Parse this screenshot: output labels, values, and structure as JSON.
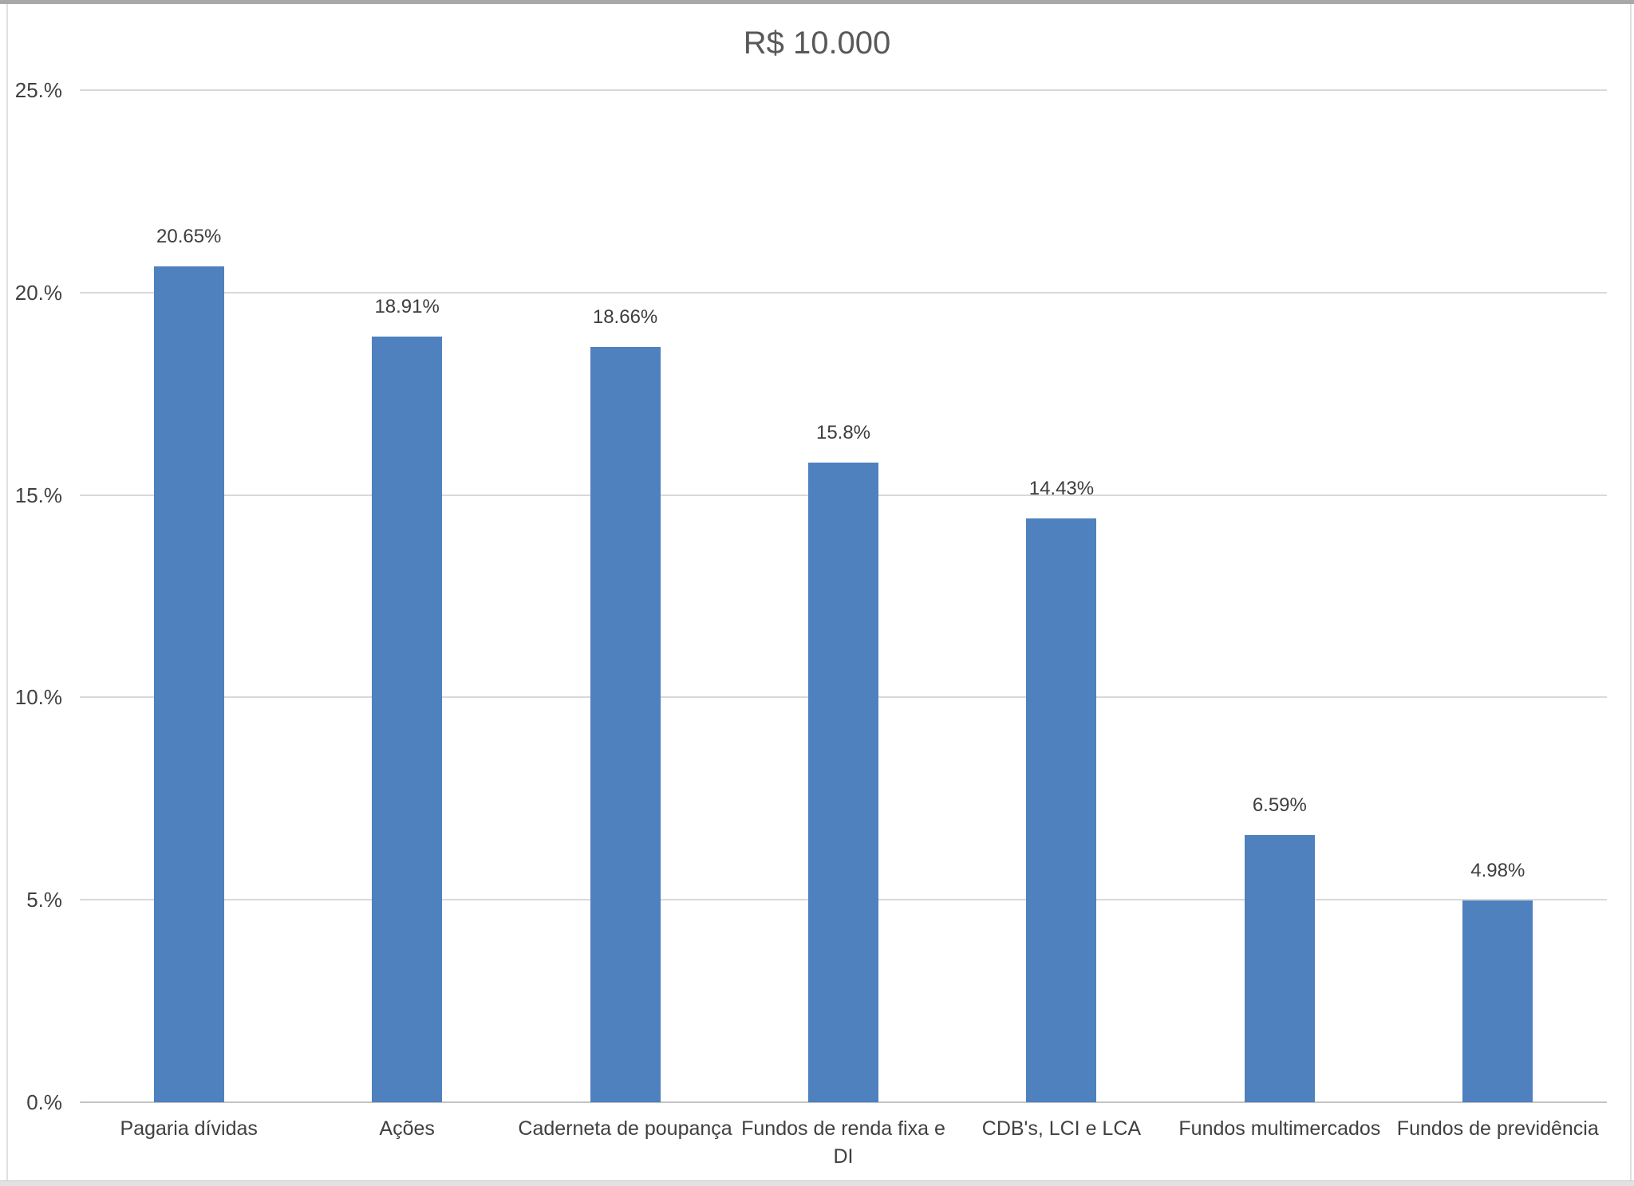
{
  "chart_data": {
    "type": "bar",
    "title": "R$ 10.000",
    "categories": [
      "Pagaria dívidas",
      "Ações",
      "Caderneta de poupança",
      "Fundos de renda fixa e DI",
      "CDB's, LCI e LCA",
      "Fundos multimercados",
      "Fundos de previdência"
    ],
    "values": [
      20.65,
      18.91,
      18.66,
      15.8,
      14.43,
      6.59,
      4.98
    ],
    "value_labels": [
      "20.65%",
      "18.91%",
      "18.66%",
      "15.8%",
      "14.43%",
      "6.59%",
      "4.98%"
    ],
    "xlabel": "",
    "ylabel": "",
    "ylim": [
      0,
      25
    ],
    "y_ticks": [
      0,
      5,
      10,
      15,
      20,
      25
    ],
    "y_tick_labels": [
      "0.%",
      "5.%",
      "10.%",
      "15.%",
      "20.%",
      "25.%"
    ],
    "grid": true,
    "legend": false,
    "colors": {
      "bar": "#4E81BD",
      "title_text": "#595959",
      "axis_text": "#404040",
      "value_label_text": "#3d3d3d",
      "gridline": "#d9d9d9",
      "axis_line": "#c4c4c4"
    }
  },
  "window": {
    "border_top_color": "#a8a8a8",
    "border_bottom_color": "#e2e2e2",
    "border_side_color": "#e0e0e0",
    "background": "#ffffff"
  }
}
